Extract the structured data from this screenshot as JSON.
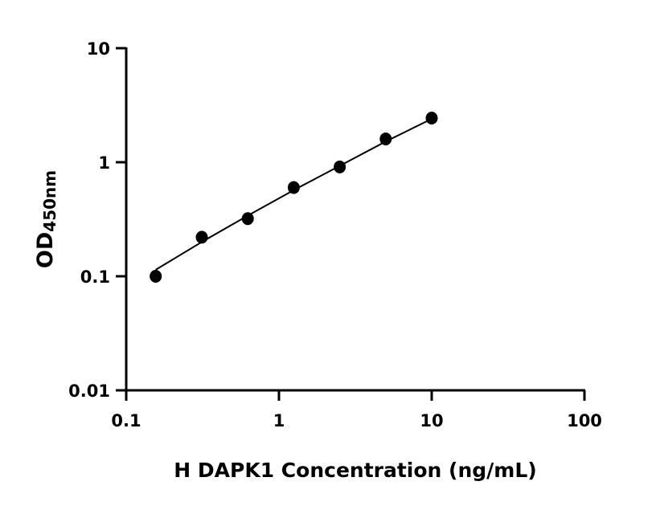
{
  "chart_data": {
    "type": "scatter",
    "title": "",
    "xlabel": "H DAPK1 Concentration (ng/mL)",
    "ylabel": "OD",
    "ylabel_subscript": "450nm",
    "x_scale": "log",
    "y_scale": "log",
    "xlim": [
      0.1,
      100
    ],
    "ylim": [
      0.01,
      10
    ],
    "x_ticks": [
      "0.1",
      "1",
      "10",
      "100"
    ],
    "y_ticks": [
      "0.01",
      "0.1",
      "1",
      "10"
    ],
    "grid": false,
    "legend": "none",
    "points": {
      "x": [
        0.156,
        0.3125,
        0.625,
        1.25,
        2.5,
        5,
        10
      ],
      "y": [
        0.1,
        0.22,
        0.32,
        0.6,
        0.91,
        1.6,
        2.44
      ]
    },
    "fit_curve": {
      "x": [
        0.156,
        0.3125,
        0.625,
        1.25,
        2.5,
        5,
        10
      ],
      "y": [
        0.114,
        0.2,
        0.34,
        0.57,
        0.93,
        1.52,
        2.4
      ]
    },
    "colors": {
      "marker": "#000000",
      "line": "#000000"
    }
  }
}
